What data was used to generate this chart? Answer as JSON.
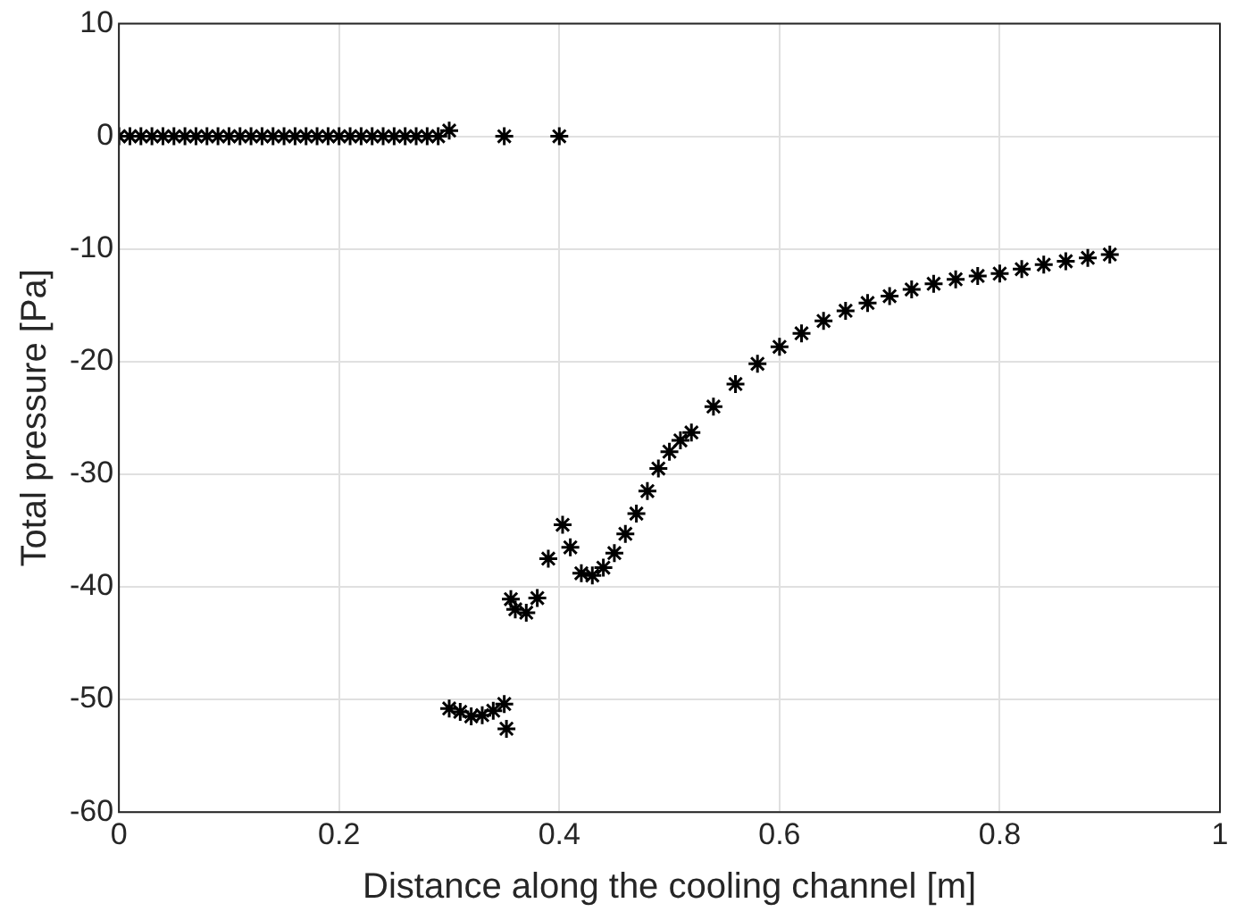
{
  "chart_data": {
    "type": "scatter",
    "xlabel": "Distance along the cooling channel [m]",
    "ylabel": "Total pressure [Pa]",
    "x": [
      0,
      0.01,
      0.02,
      0.03,
      0.04,
      0.05,
      0.06,
      0.07,
      0.08,
      0.09,
      0.1,
      0.11,
      0.12,
      0.13,
      0.14,
      0.15,
      0.16,
      0.17,
      0.18,
      0.19,
      0.2,
      0.21,
      0.22,
      0.23,
      0.24,
      0.25,
      0.26,
      0.27,
      0.28,
      0.29,
      0.3,
      0.35,
      0.4,
      0.3,
      0.31,
      0.32,
      0.33,
      0.34,
      0.35,
      0.352,
      0.356,
      0.36,
      0.37,
      0.38,
      0.39,
      0.403,
      0.41,
      0.42,
      0.43,
      0.44,
      0.45,
      0.46,
      0.47,
      0.48,
      0.49,
      0.5,
      0.51,
      0.52,
      0.54,
      0.56,
      0.58,
      0.6,
      0.62,
      0.64,
      0.66,
      0.68,
      0.7,
      0.72,
      0.74,
      0.76,
      0.78,
      0.8,
      0.82,
      0.84,
      0.86,
      0.88,
      0.9
    ],
    "series": [
      {
        "color": "#000000",
        "values": [
          0,
          0,
          0,
          0,
          0,
          0,
          0,
          0,
          0,
          0,
          0,
          0,
          0,
          0,
          0,
          0,
          0,
          0,
          0,
          0,
          0,
          0,
          0,
          0,
          0,
          0,
          0,
          0,
          0,
          0,
          0.5,
          0,
          0,
          -50.8,
          -51.1,
          -51.5,
          -51.4,
          -51,
          -50.4,
          -52.6,
          -41.1,
          -42,
          -42.3,
          -41,
          -37.5,
          -34.5,
          -36.5,
          -38.8,
          -39,
          -38.3,
          -37,
          -35.3,
          -33.5,
          -31.5,
          -29.5,
          -28,
          -27,
          -26.3,
          -24,
          -22,
          -20.2,
          -18.7,
          -17.5,
          -16.4,
          -15.5,
          -14.8,
          -14.2,
          -13.6,
          -13.1,
          -12.7,
          -12.4,
          -12.2,
          -11.8,
          -11.4,
          -11.1,
          -10.8,
          -10.5
        ]
      }
    ],
    "marker": "cross",
    "xlim": [
      0,
      1
    ],
    "ylim": [
      -60,
      10
    ],
    "xticks": [
      0,
      0.2,
      0.4,
      0.6,
      0.8,
      1
    ],
    "yticks": [
      -60,
      -50,
      -40,
      -30,
      -20,
      -10,
      0,
      10
    ],
    "grid": true
  }
}
